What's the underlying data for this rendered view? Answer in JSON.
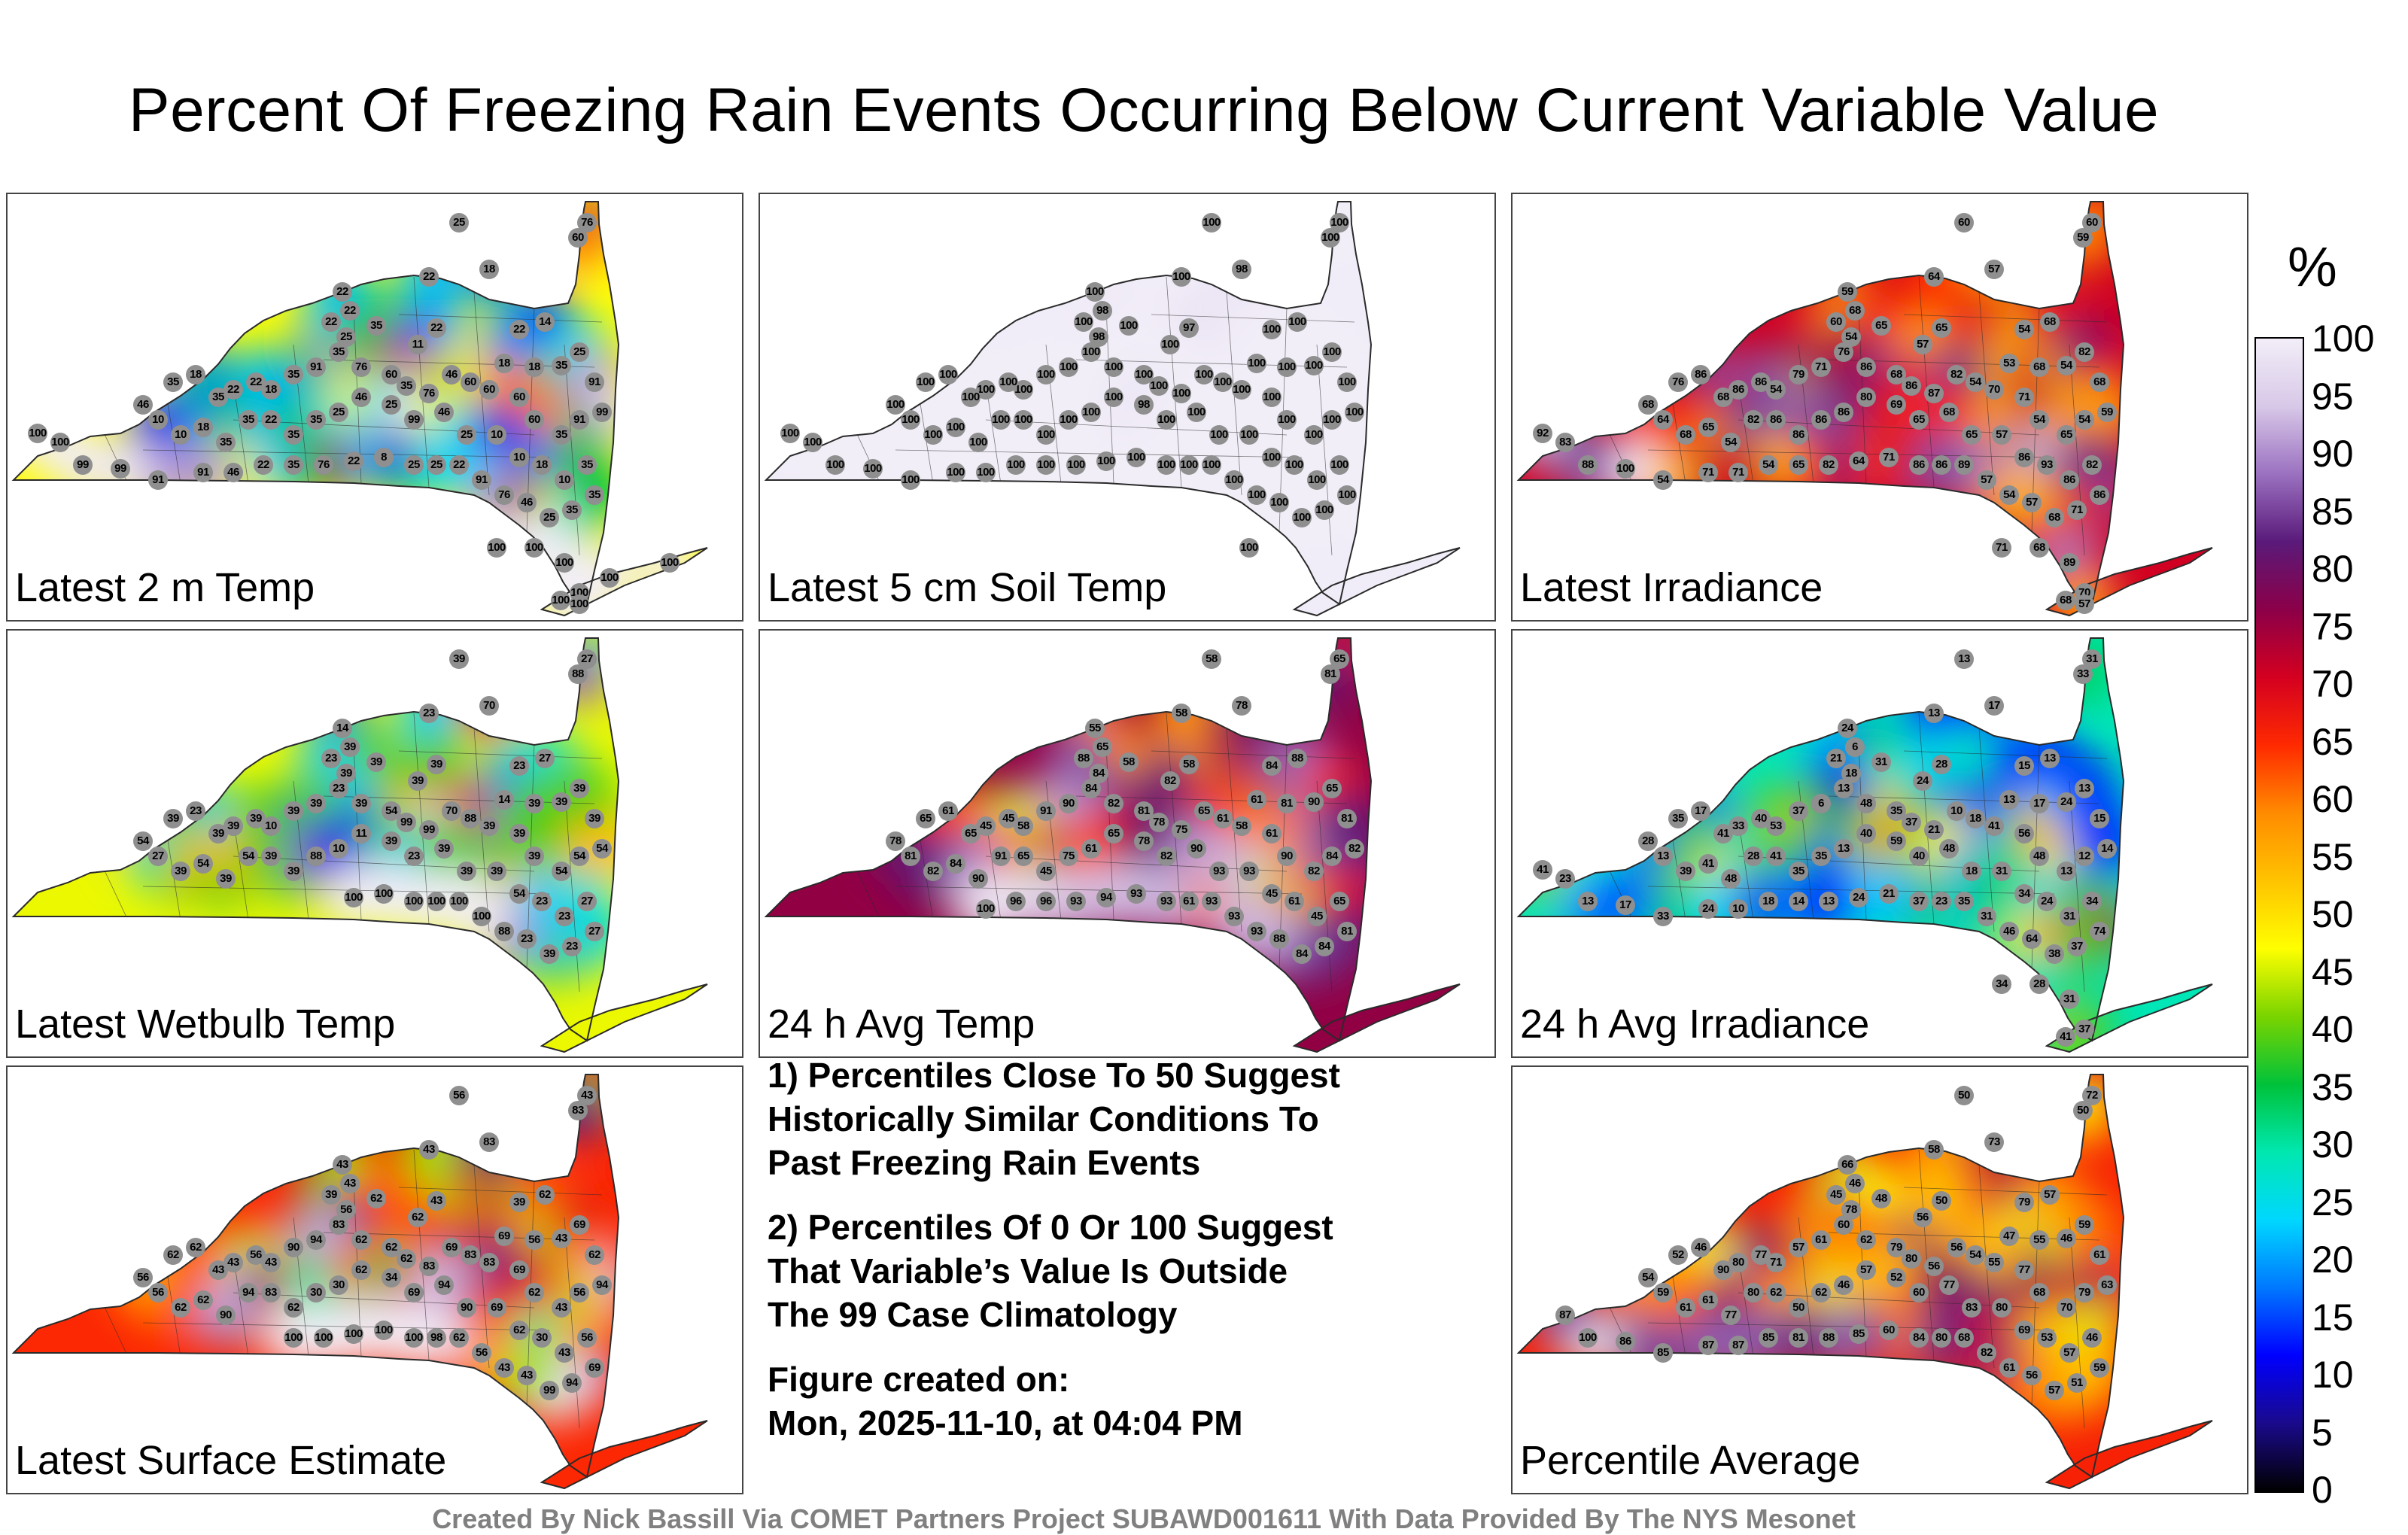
{
  "title": "Percent Of Freezing Rain Events Occurring Below Current Variable Value",
  "colorbar": {
    "unit": "%",
    "ticks": [
      "100",
      "95",
      "90",
      "85",
      "80",
      "75",
      "70",
      "65",
      "60",
      "55",
      "50",
      "45",
      "40",
      "35",
      "30",
      "25",
      "20",
      "15",
      "10",
      "5",
      "0"
    ]
  },
  "panels": [
    {
      "label": "Latest 2 m Temp",
      "field": "temp2m",
      "values": [
        "25",
        "76",
        "60",
        "18",
        "22",
        "22",
        "22",
        "22",
        "25",
        "35",
        "22",
        "11",
        "22",
        "14",
        "18",
        "18",
        "35",
        "25",
        "91",
        "99",
        "91",
        "35",
        "60",
        "60",
        "60",
        "60",
        "46",
        "76",
        "35",
        "60",
        "76",
        "35",
        "91",
        "35",
        "18",
        "22",
        "22",
        "35",
        "18",
        "35",
        "46",
        "10",
        "10",
        "18",
        "35",
        "35",
        "22",
        "35",
        "35",
        "25",
        "46",
        "25",
        "99",
        "46",
        "25",
        "10",
        "10",
        "18",
        "10",
        "35",
        "35",
        "35",
        "25",
        "46",
        "76",
        "91",
        "22",
        "25",
        "25",
        "8",
        "22",
        "76",
        "35",
        "22",
        "46",
        "91",
        "91",
        "99",
        "99",
        "100",
        "100",
        "100",
        "100",
        "100",
        "100",
        "100",
        "100",
        "100",
        "100"
      ]
    },
    {
      "label": "Latest 5 cm Soil Temp",
      "field": "soil5cm",
      "values": [
        "100",
        "100",
        "100",
        "98",
        "100",
        "100",
        "98",
        "100",
        "98",
        "100",
        "97",
        "100",
        "100",
        "100",
        "100",
        "100",
        "100",
        "100",
        "100",
        "100",
        "100",
        "100",
        "100",
        "100",
        "100",
        "100",
        "100",
        "100",
        "100",
        "100",
        "100",
        "100",
        "100",
        "100",
        "100",
        "100",
        "100",
        "100",
        "100",
        "100",
        "100",
        "100",
        "100",
        "100",
        "100",
        "100",
        "100",
        "100",
        "100",
        "100",
        "100",
        "98",
        "100",
        "100",
        "100",
        "100",
        "100",
        "100",
        "100",
        "100",
        "100",
        "100",
        "100",
        "100",
        "100",
        "100",
        "100",
        "100",
        "100",
        "100",
        "100",
        "100",
        "100",
        "100",
        "100",
        "100",
        "100",
        "100",
        "100",
        "100",
        "100",
        "100"
      ]
    },
    {
      "label": "Latest Irradiance",
      "field": "irradiance",
      "values": [
        "60",
        "60",
        "59",
        "57",
        "64",
        "59",
        "68",
        "60",
        "54",
        "65",
        "65",
        "57",
        "54",
        "68",
        "53",
        "68",
        "54",
        "82",
        "68",
        "59",
        "54",
        "65",
        "54",
        "71",
        "70",
        "54",
        "82",
        "87",
        "86",
        "68",
        "86",
        "76",
        "71",
        "79",
        "54",
        "86",
        "86",
        "68",
        "86",
        "76",
        "68",
        "64",
        "68",
        "65",
        "54",
        "82",
        "86",
        "86",
        "86",
        "86",
        "80",
        "69",
        "65",
        "68",
        "65",
        "57",
        "86",
        "93",
        "86",
        "82",
        "86",
        "71",
        "68",
        "57",
        "54",
        "57",
        "89",
        "86",
        "86",
        "71",
        "64",
        "82",
        "65",
        "54",
        "71",
        "71",
        "54",
        "100",
        "88",
        "83",
        "92",
        "71",
        "68",
        "89",
        "70",
        "68",
        "57"
      ]
    },
    {
      "label": "Latest Wetbulb Temp",
      "field": "wetbulb",
      "values": [
        "39",
        "27",
        "88",
        "70",
        "23",
        "14",
        "39",
        "23",
        "39",
        "39",
        "39",
        "39",
        "23",
        "27",
        "14",
        "39",
        "39",
        "39",
        "39",
        "54",
        "54",
        "54",
        "39",
        "39",
        "39",
        "88",
        "70",
        "99",
        "99",
        "54",
        "39",
        "23",
        "39",
        "39",
        "10",
        "39",
        "39",
        "39",
        "23",
        "39",
        "54",
        "27",
        "39",
        "54",
        "39",
        "54",
        "39",
        "39",
        "88",
        "10",
        "11",
        "39",
        "23",
        "39",
        "39",
        "39",
        "54",
        "23",
        "23",
        "27",
        "27",
        "23",
        "39",
        "23",
        "88",
        "100",
        "100",
        "100",
        "100",
        "100",
        "100"
      ]
    },
    {
      "label": "24 h Avg Temp",
      "field": "avgtemp24",
      "values": [
        "58",
        "65",
        "81",
        "78",
        "58",
        "55",
        "65",
        "88",
        "84",
        "58",
        "58",
        "82",
        "84",
        "88",
        "61",
        "81",
        "90",
        "65",
        "81",
        "82",
        "84",
        "82",
        "90",
        "61",
        "58",
        "61",
        "65",
        "75",
        "78",
        "81",
        "82",
        "84",
        "90",
        "91",
        "58",
        "45",
        "45",
        "65",
        "61",
        "65",
        "78",
        "81",
        "82",
        "84",
        "90",
        "91",
        "65",
        "45",
        "75",
        "61",
        "65",
        "78",
        "82",
        "90",
        "93",
        "93",
        "45",
        "61",
        "45",
        "65",
        "81",
        "84",
        "84",
        "88",
        "93",
        "93",
        "93",
        "61",
        "93",
        "93",
        "94",
        "93",
        "96",
        "96",
        "100"
      ]
    },
    {
      "label": "24 h Avg Irradiance",
      "field": "avgirr24",
      "values": [
        "13",
        "31",
        "33",
        "17",
        "13",
        "24",
        "6",
        "21",
        "18",
        "31",
        "28",
        "24",
        "15",
        "13",
        "13",
        "17",
        "24",
        "13",
        "15",
        "14",
        "12",
        "13",
        "48",
        "56",
        "41",
        "18",
        "10",
        "21",
        "37",
        "35",
        "48",
        "13",
        "6",
        "37",
        "53",
        "40",
        "33",
        "41",
        "17",
        "35",
        "28",
        "13",
        "39",
        "41",
        "48",
        "28",
        "41",
        "35",
        "35",
        "13",
        "40",
        "59",
        "40",
        "48",
        "18",
        "31",
        "34",
        "24",
        "31",
        "34",
        "74",
        "37",
        "38",
        "64",
        "46",
        "31",
        "35",
        "23",
        "37",
        "21",
        "24",
        "13",
        "14",
        "18",
        "10",
        "24",
        "33",
        "17",
        "13",
        "23",
        "41",
        "34",
        "28",
        "31",
        "37",
        "41"
      ]
    },
    {
      "label": "Latest Surface Estimate",
      "field": "surface",
      "values": [
        "56",
        "43",
        "83",
        "83",
        "43",
        "43",
        "43",
        "39",
        "56",
        "62",
        "43",
        "62",
        "39",
        "62",
        "69",
        "56",
        "43",
        "69",
        "62",
        "94",
        "56",
        "43",
        "62",
        "69",
        "83",
        "83",
        "69",
        "83",
        "62",
        "62",
        "62",
        "83",
        "94",
        "90",
        "43",
        "56",
        "43",
        "43",
        "62",
        "62",
        "56",
        "56",
        "62",
        "62",
        "90",
        "94",
        "83",
        "62",
        "30",
        "30",
        "62",
        "34",
        "69",
        "94",
        "90",
        "69",
        "62",
        "30",
        "43",
        "56",
        "69",
        "94",
        "99",
        "43",
        "43",
        "56",
        "62",
        "98",
        "100",
        "100",
        "100",
        "100",
        "100"
      ]
    },
    {
      "label": "Percentile Average",
      "field": "average",
      "values": [
        "50",
        "72",
        "50",
        "73",
        "58",
        "66",
        "46",
        "45",
        "78",
        "48",
        "50",
        "56",
        "79",
        "57",
        "47",
        "55",
        "46",
        "59",
        "61",
        "63",
        "79",
        "70",
        "68",
        "77",
        "55",
        "54",
        "56",
        "56",
        "80",
        "79",
        "62",
        "60",
        "61",
        "57",
        "71",
        "77",
        "80",
        "90",
        "46",
        "52",
        "54",
        "59",
        "61",
        "61",
        "77",
        "80",
        "62",
        "50",
        "62",
        "46",
        "57",
        "52",
        "60",
        "77",
        "83",
        "80",
        "69",
        "53",
        "57",
        "46",
        "59",
        "51",
        "57",
        "56",
        "61",
        "82",
        "68",
        "80",
        "84",
        "60",
        "85",
        "88",
        "81",
        "85",
        "87",
        "87",
        "85",
        "86",
        "100",
        "87"
      ]
    }
  ],
  "notes": [
    [
      "1) Percentiles Close To 50 Suggest",
      "Historically Similar Conditions To",
      "Past Freezing Rain Events"
    ],
    [
      "2) Percentiles Of 0 Or 100 Suggest",
      "That Variable’s Value Is Outside",
      "The 99 Case Climatology"
    ],
    [
      "Figure created on:",
      "Mon, 2025-11-10, at 04:04 PM"
    ]
  ],
  "footer": "Created By Nick Bassill Via COMET Partners Project SUBAWD001611 With Data Provided By The NYS Mesonet",
  "colors": {
    "scale": [
      "#000000",
      "#1a0a8c",
      "#0000ff",
      "#0077ff",
      "#00d7ff",
      "#00e8b0",
      "#00c23a",
      "#7ad400",
      "#ffff00",
      "#ffc400",
      "#ff8c00",
      "#ff2a00",
      "#d40020",
      "#8b0048",
      "#5a1a7a",
      "#9a70c0",
      "#d8c8e8",
      "#f2eef8"
    ],
    "county_line": "#2a2a2a",
    "station": "#8f8f8f"
  }
}
